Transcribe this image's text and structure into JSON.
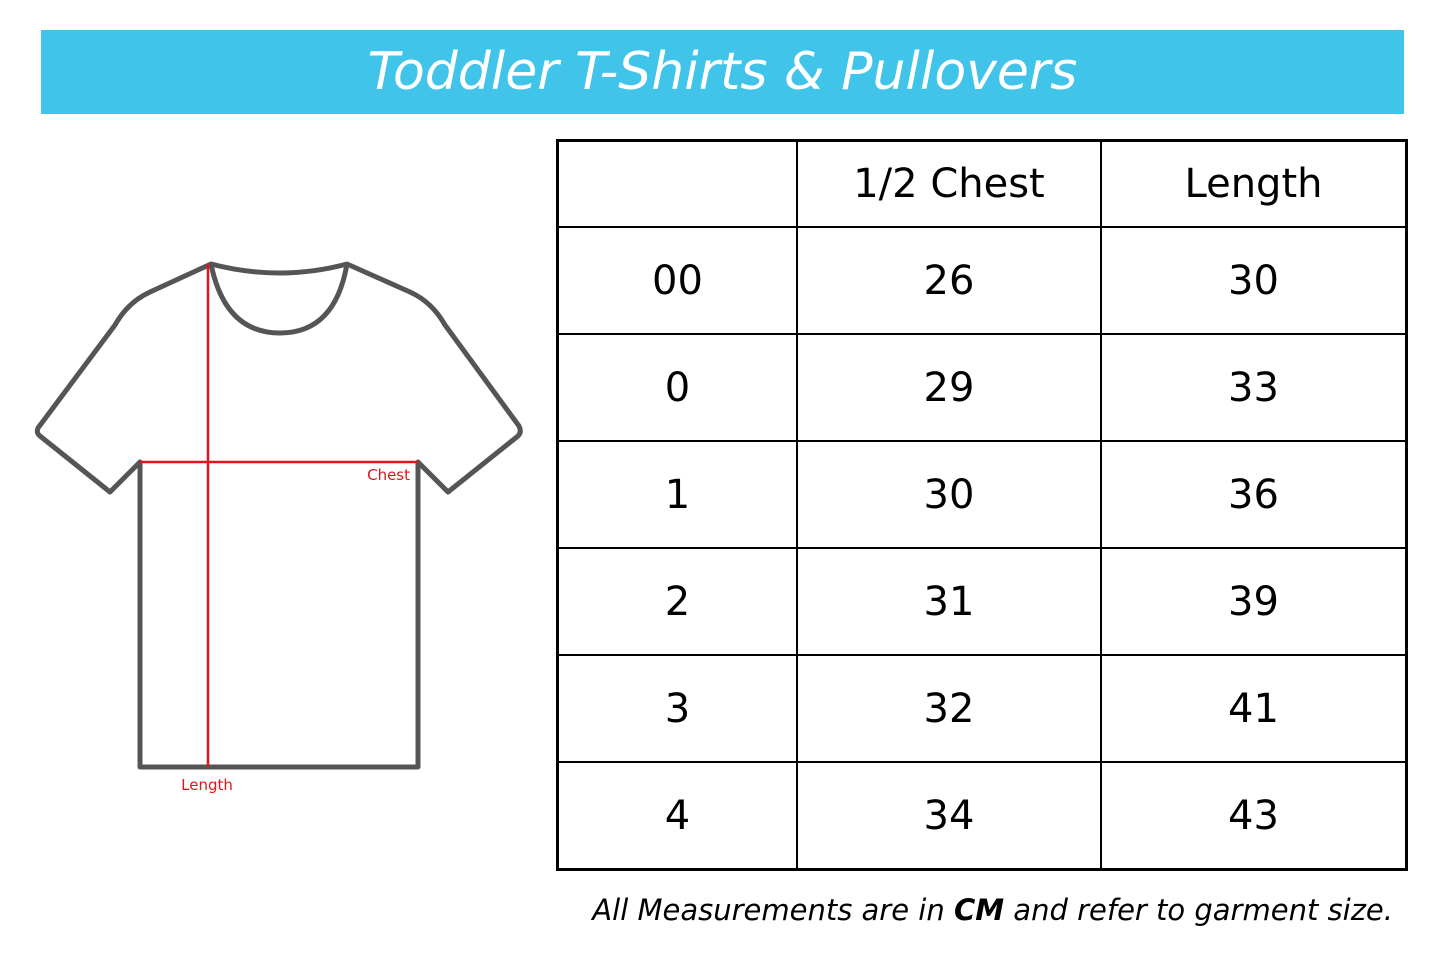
{
  "title": "Toddler T-Shirts & Pullovers",
  "diagram": {
    "chest_label": "Chest",
    "length_label": "Length",
    "measure_color": "#e3141b",
    "banner_color": "#40c4ea"
  },
  "table": {
    "headers": [
      "",
      "1/2 Chest",
      "Length"
    ],
    "rows": [
      [
        "00",
        "26",
        "30"
      ],
      [
        "0",
        "29",
        "33"
      ],
      [
        "1",
        "30",
        "36"
      ],
      [
        "2",
        "31",
        "39"
      ],
      [
        "3",
        "32",
        "41"
      ],
      [
        "4",
        "34",
        "43"
      ]
    ]
  },
  "note": {
    "prefix": "All Measurements are in ",
    "unit": "CM",
    "suffix": " and refer to garment size."
  }
}
